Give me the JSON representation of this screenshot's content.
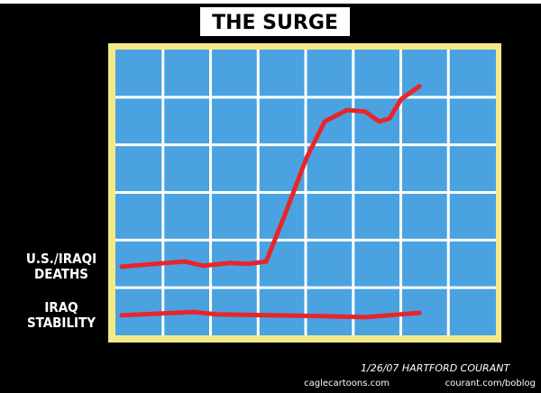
{
  "chart_data": {
    "type": "line",
    "title": "THE SURGE",
    "xlim": [
      0,
      8
    ],
    "ylim": [
      0,
      6
    ],
    "xticks": [
      1,
      2,
      3,
      4,
      5,
      6,
      7
    ],
    "yticks": [
      1,
      2,
      3,
      4,
      5
    ],
    "grid": true,
    "series": [
      {
        "name": "U.S./IRAQI DEATHS",
        "color": "#e8262a",
        "x": [
          0.13,
          1.08,
          1.46,
          1.84,
          2.41,
          2.79,
          3.17,
          3.55,
          4.02,
          4.4,
          4.87,
          5.25,
          5.54,
          5.76,
          6.01,
          6.39
        ],
        "values": [
          1.44,
          1.52,
          1.55,
          1.46,
          1.52,
          1.5,
          1.55,
          2.5,
          3.73,
          4.49,
          4.73,
          4.7,
          4.49,
          4.55,
          4.96,
          5.23
        ]
      },
      {
        "name": "IRAQ STABILITY",
        "color": "#e8262a",
        "x": [
          0.13,
          1.65,
          2.12,
          3.26,
          4.49,
          5.25,
          6.39
        ],
        "values": [
          0.42,
          0.49,
          0.44,
          0.42,
          0.4,
          0.38,
          0.47
        ]
      }
    ],
    "signature": "1/26/07 HARTFORD COURANT",
    "credits": [
      "caglecartoons.com",
      "courant.com/boblog"
    ]
  }
}
